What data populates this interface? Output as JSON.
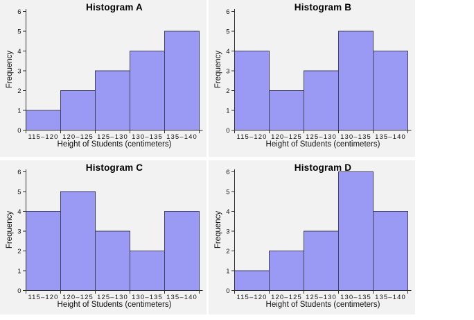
{
  "page": {
    "background": "#ffffff",
    "panel_background": "#f2f2f2",
    "axis_color": "#2e2e2e",
    "text_color": "#000000"
  },
  "chart_data": [
    {
      "type": "bar",
      "title": "Histogram A",
      "categories": [
        "115–120",
        "120–125",
        "125–130",
        "130–135",
        "135–140"
      ],
      "values": [
        1,
        2,
        3,
        4,
        5
      ],
      "xlabel": "Height of Students (centimeters)",
      "ylabel": "Frequency",
      "ylim": [
        0,
        6
      ],
      "yticks": [
        0,
        1,
        2,
        3,
        4,
        5,
        6
      ],
      "grid": false,
      "legend": "none",
      "bar_fill": "#9a9af5",
      "bar_stroke": "#404060"
    },
    {
      "type": "bar",
      "title": "Histogram B",
      "categories": [
        "115–120",
        "120–125",
        "125–130",
        "130–135",
        "135–140"
      ],
      "values": [
        4,
        2,
        3,
        5,
        4
      ],
      "xlabel": "Height of Students (centimeters)",
      "ylabel": "Frequency",
      "ylim": [
        0,
        6
      ],
      "yticks": [
        0,
        1,
        2,
        3,
        4,
        5,
        6
      ],
      "grid": false,
      "legend": "none",
      "bar_fill": "#9a9af5",
      "bar_stroke": "#404060"
    },
    {
      "type": "bar",
      "title": "Histogram C",
      "categories": [
        "115–120",
        "120–125",
        "125–130",
        "130–135",
        "135–140"
      ],
      "values": [
        4,
        5,
        3,
        2,
        4
      ],
      "xlabel": "Height of Students (centimeters)",
      "ylabel": "Frequency",
      "ylim": [
        0,
        6
      ],
      "yticks": [
        0,
        1,
        2,
        3,
        4,
        5,
        6
      ],
      "grid": false,
      "legend": "none",
      "bar_fill": "#9a9af5",
      "bar_stroke": "#404060"
    },
    {
      "type": "bar",
      "title": "Histogram D",
      "categories": [
        "115–120",
        "120–125",
        "125–130",
        "130–135",
        "135–140"
      ],
      "values": [
        1,
        2,
        3,
        6,
        4
      ],
      "xlabel": "Height of Students (centimeters)",
      "ylabel": "Frequency",
      "ylim": [
        0,
        6
      ],
      "yticks": [
        0,
        1,
        2,
        3,
        4,
        5,
        6
      ],
      "grid": false,
      "legend": "none",
      "bar_fill": "#9a9af5",
      "bar_stroke": "#404060"
    }
  ]
}
